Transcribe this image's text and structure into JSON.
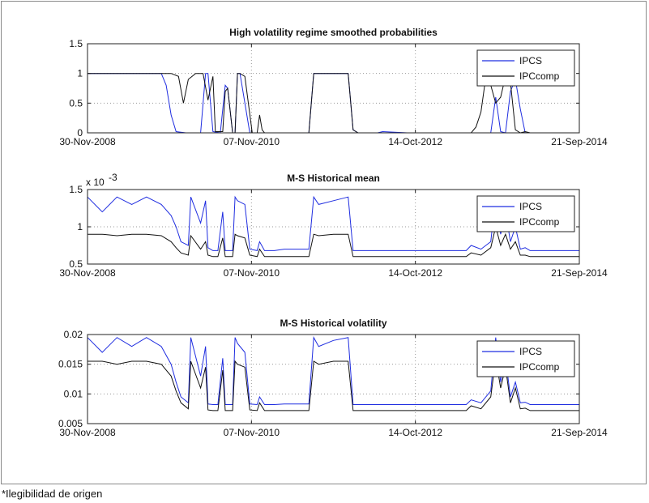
{
  "footnote": "*Ilegibilidad de origen",
  "colors": {
    "IPCS": "#1f2de0",
    "IPCcomp": "#111111",
    "grid": "#9a9a9a"
  },
  "chart_data": [
    {
      "type": "line",
      "title": "High volatility regime smoothed probabilities",
      "x_tick_labels": [
        "30-Nov-2008",
        "07-Nov-2010",
        "14-Oct-2012",
        "21-Sep-2014"
      ],
      "ylim": [
        0,
        1.5
      ],
      "y_ticks": [
        0,
        0.5,
        1,
        1.5
      ],
      "y_tick_labels": [
        "0",
        "0.5",
        "1",
        "1.5"
      ],
      "grid": true,
      "legend": {
        "placement": "top-right",
        "entries": [
          "IPCS",
          "IPCcomp"
        ]
      },
      "series": [
        {
          "name": "IPCS",
          "x": [
            0,
            0.5,
            1,
            1.5,
            1.6,
            1.7,
            1.8,
            2.0,
            2.3,
            2.4,
            2.45,
            2.55,
            2.7,
            2.8,
            2.85,
            2.95,
            3.0,
            3.05,
            3.1,
            3.3,
            3.4,
            3.45,
            3.55,
            3.65,
            3.7,
            3.8,
            3.9,
            4.5,
            4.6,
            4.7,
            5.0,
            5.3,
            5.4,
            5.5,
            5.8,
            5.9,
            6.0,
            6.5,
            7.0,
            7.8,
            8.0,
            8.2,
            8.3,
            8.4,
            8.5,
            8.6,
            8.7,
            8.8,
            8.9,
            9.0,
            9.5,
            10
          ],
          "y": [
            1,
            1,
            1,
            1,
            0.8,
            0.3,
            0.02,
            0,
            0,
            1,
            1,
            0.02,
            0,
            0.8,
            0.75,
            0,
            0,
            1,
            1,
            0,
            0,
            0,
            0,
            0,
            0,
            0,
            0,
            0,
            1,
            1,
            1,
            1,
            0.05,
            0,
            0,
            0,
            0.02,
            0,
            0,
            0,
            0,
            0,
            0.6,
            0.02,
            0,
            0.7,
            0.9,
            0.4,
            0,
            0,
            0,
            0
          ]
        },
        {
          "name": "IPCcomp",
          "x": [
            0,
            0.5,
            1,
            1.5,
            1.7,
            1.85,
            1.95,
            2.05,
            2.2,
            2.35,
            2.45,
            2.55,
            2.6,
            2.75,
            2.8,
            2.85,
            2.95,
            3.0,
            3.05,
            3.1,
            3.2,
            3.35,
            3.45,
            3.5,
            3.55,
            3.6,
            3.7,
            3.8,
            4.5,
            4.6,
            4.7,
            5.0,
            5.3,
            5.4,
            5.5,
            5.9,
            6.0,
            6.5,
            7.0,
            7.8,
            7.9,
            8.0,
            8.1,
            8.2,
            8.3,
            8.4,
            8.5,
            8.6,
            8.7,
            8.8,
            8.9,
            9.0,
            9.5,
            10
          ],
          "y": [
            1,
            1,
            1,
            1,
            1,
            0.95,
            0.5,
            0.9,
            1,
            1,
            0.55,
            0.95,
            0.02,
            0.02,
            0.7,
            0.75,
            0,
            0,
            1,
            1,
            0.95,
            0,
            0,
            0.3,
            0.05,
            0,
            0,
            0,
            0,
            1,
            1,
            1,
            1,
            0.05,
            0,
            0,
            0,
            0,
            0,
            0,
            0.1,
            0.35,
            0.95,
            0.8,
            0.5,
            0.6,
            0.95,
            0.85,
            0.05,
            0,
            0.02,
            0,
            0,
            0
          ]
        }
      ]
    },
    {
      "type": "line",
      "title": "M-S Historical mean",
      "x_tick_labels": [
        "30-Nov-2008",
        "07-Nov-2010",
        "14-Oct-2012",
        "21-Sep-2014"
      ],
      "ylim": [
        0.5,
        1.5
      ],
      "y_ticks": [
        0.5,
        1,
        1.5
      ],
      "y_tick_labels": [
        "0.5",
        "1",
        "1.5"
      ],
      "y_multiplier_label": "x 10",
      "y_multiplier_exponent": "-3",
      "grid": true,
      "legend": {
        "placement": "top-right",
        "entries": [
          "IPCS",
          "IPCcomp"
        ]
      },
      "series": [
        {
          "name": "IPCS",
          "x": [
            0,
            0.3,
            0.6,
            0.9,
            1.2,
            1.5,
            1.7,
            1.8,
            1.9,
            2.05,
            2.1,
            2.3,
            2.4,
            2.45,
            2.55,
            2.65,
            2.75,
            2.8,
            2.85,
            2.95,
            3.0,
            3.05,
            3.2,
            3.3,
            3.45,
            3.5,
            3.6,
            3.8,
            4.0,
            4.5,
            4.6,
            4.7,
            5.0,
            5.3,
            5.4,
            5.5,
            6.0,
            7.0,
            7.7,
            7.8,
            8.0,
            8.2,
            8.3,
            8.4,
            8.5,
            8.6,
            8.7,
            8.8,
            8.9,
            9.0,
            9.5,
            10
          ],
          "y": [
            1.4,
            1.2,
            1.4,
            1.3,
            1.4,
            1.3,
            1.15,
            1.0,
            0.8,
            0.75,
            1.4,
            1.05,
            1.35,
            0.72,
            0.68,
            0.68,
            1.2,
            0.68,
            0.68,
            0.68,
            1.4,
            1.35,
            1.3,
            0.7,
            0.68,
            0.8,
            0.68,
            0.68,
            0.7,
            0.7,
            1.4,
            1.3,
            1.35,
            1.4,
            0.68,
            0.68,
            0.68,
            0.68,
            0.68,
            0.75,
            0.7,
            0.8,
            1.4,
            0.9,
            1.2,
            0.8,
            1.0,
            0.7,
            0.72,
            0.68,
            0.68,
            0.68
          ]
        },
        {
          "name": "IPCcomp",
          "x": [
            0,
            0.3,
            0.6,
            0.9,
            1.2,
            1.5,
            1.7,
            1.8,
            1.9,
            2.05,
            2.1,
            2.3,
            2.4,
            2.45,
            2.55,
            2.65,
            2.75,
            2.8,
            2.85,
            2.95,
            3.0,
            3.05,
            3.2,
            3.3,
            3.45,
            3.5,
            3.6,
            3.8,
            4.0,
            4.5,
            4.6,
            4.7,
            5.0,
            5.3,
            5.4,
            5.5,
            6.0,
            7.0,
            7.7,
            7.8,
            8.0,
            8.2,
            8.3,
            8.4,
            8.5,
            8.6,
            8.7,
            8.8,
            8.9,
            9.0,
            9.5,
            10
          ],
          "y": [
            0.9,
            0.9,
            0.88,
            0.9,
            0.9,
            0.88,
            0.8,
            0.72,
            0.65,
            0.62,
            0.88,
            0.7,
            0.8,
            0.62,
            0.6,
            0.6,
            0.85,
            0.6,
            0.6,
            0.6,
            0.9,
            0.88,
            0.85,
            0.62,
            0.6,
            0.7,
            0.6,
            0.6,
            0.6,
            0.6,
            0.9,
            0.88,
            0.9,
            0.9,
            0.6,
            0.6,
            0.6,
            0.6,
            0.6,
            0.65,
            0.62,
            0.72,
            1.0,
            0.75,
            0.9,
            0.7,
            0.8,
            0.62,
            0.62,
            0.6,
            0.6,
            0.6
          ]
        }
      ]
    },
    {
      "type": "line",
      "title": "M-S Historical volatility",
      "x_tick_labels": [
        "30-Nov-2008",
        "07-Nov-2010",
        "14-Oct-2012",
        "21-Sep-2014"
      ],
      "ylim": [
        0.005,
        0.02
      ],
      "y_ticks": [
        0.005,
        0.01,
        0.015,
        0.02
      ],
      "y_tick_labels": [
        "0.005",
        "0.01",
        "0.015",
        "0.02"
      ],
      "grid": true,
      "legend": {
        "placement": "top-right",
        "entries": [
          "IPCS",
          "IPCcomp"
        ]
      },
      "series": [
        {
          "name": "IPCS",
          "x": [
            0,
            0.3,
            0.6,
            0.9,
            1.2,
            1.5,
            1.7,
            1.8,
            1.9,
            2.05,
            2.1,
            2.3,
            2.4,
            2.45,
            2.55,
            2.65,
            2.75,
            2.8,
            2.85,
            2.95,
            3.0,
            3.05,
            3.2,
            3.3,
            3.45,
            3.5,
            3.6,
            3.8,
            4.0,
            4.5,
            4.6,
            4.7,
            5.0,
            5.3,
            5.4,
            5.5,
            6.0,
            7.0,
            7.7,
            7.8,
            8.0,
            8.2,
            8.3,
            8.4,
            8.5,
            8.6,
            8.7,
            8.8,
            8.9,
            9.0,
            9.5,
            10
          ],
          "y": [
            0.0195,
            0.017,
            0.0195,
            0.018,
            0.0195,
            0.018,
            0.015,
            0.012,
            0.0095,
            0.0085,
            0.0195,
            0.013,
            0.018,
            0.0083,
            0.0082,
            0.0082,
            0.016,
            0.0082,
            0.0082,
            0.0082,
            0.0195,
            0.0185,
            0.017,
            0.0083,
            0.0082,
            0.0095,
            0.0082,
            0.0082,
            0.0083,
            0.0083,
            0.0195,
            0.018,
            0.019,
            0.0195,
            0.0082,
            0.0082,
            0.0082,
            0.0082,
            0.0082,
            0.009,
            0.0085,
            0.0105,
            0.0195,
            0.012,
            0.016,
            0.0095,
            0.012,
            0.0085,
            0.0086,
            0.0082,
            0.0082,
            0.0082
          ]
        },
        {
          "name": "IPCcomp",
          "x": [
            0,
            0.3,
            0.6,
            0.9,
            1.2,
            1.5,
            1.7,
            1.8,
            1.9,
            2.05,
            2.1,
            2.3,
            2.4,
            2.45,
            2.55,
            2.65,
            2.75,
            2.8,
            2.85,
            2.95,
            3.0,
            3.05,
            3.2,
            3.3,
            3.45,
            3.5,
            3.6,
            3.8,
            4.0,
            4.5,
            4.6,
            4.7,
            5.0,
            5.3,
            5.4,
            5.5,
            6.0,
            7.0,
            7.7,
            7.8,
            8.0,
            8.2,
            8.3,
            8.4,
            8.5,
            8.6,
            8.7,
            8.8,
            8.9,
            9.0,
            9.5,
            10
          ],
          "y": [
            0.0155,
            0.0155,
            0.015,
            0.0155,
            0.0155,
            0.015,
            0.013,
            0.0105,
            0.0085,
            0.0075,
            0.0155,
            0.011,
            0.0145,
            0.0073,
            0.0072,
            0.0072,
            0.014,
            0.0072,
            0.0072,
            0.0072,
            0.0155,
            0.015,
            0.0145,
            0.0073,
            0.0072,
            0.0085,
            0.0072,
            0.0072,
            0.0072,
            0.0072,
            0.0155,
            0.015,
            0.0155,
            0.0155,
            0.0072,
            0.0072,
            0.0072,
            0.0072,
            0.0072,
            0.008,
            0.0075,
            0.0095,
            0.016,
            0.011,
            0.0145,
            0.0085,
            0.011,
            0.0075,
            0.0076,
            0.0072,
            0.0072,
            0.0072
          ]
        }
      ]
    }
  ]
}
